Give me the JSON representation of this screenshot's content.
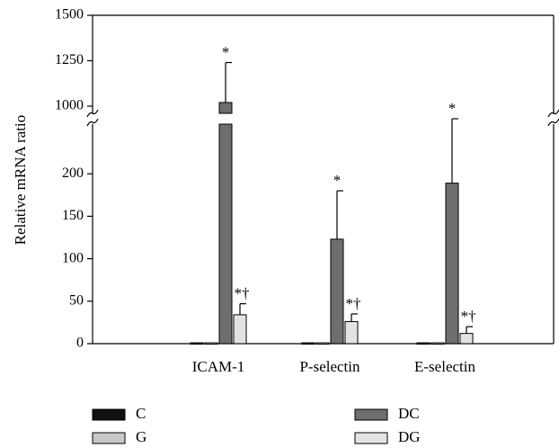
{
  "chart_data": {
    "type": "bar",
    "ylabel": "Relative mRNA ratio",
    "y_axis_break": {
      "lower_range": [
        0,
        250
      ],
      "upper_range": [
        1000,
        1500
      ]
    },
    "yticks_lower": [
      "0",
      "50",
      "100",
      "150",
      "200"
    ],
    "yticks_upper": [
      "1000",
      "1250",
      "1500"
    ],
    "categories": [
      "ICAM-1",
      "P-selectin",
      "E-selectin"
    ],
    "series": [
      {
        "name": "C",
        "color": "#111111",
        "values": [
          1,
          1,
          1
        ],
        "errors": [
          0,
          0,
          0
        ],
        "annotations": [
          "",
          "",
          ""
        ]
      },
      {
        "name": "G",
        "color": "#c8c8c8",
        "values": [
          1,
          1,
          1
        ],
        "errors": [
          0,
          0,
          0
        ],
        "annotations": [
          "",
          "",
          ""
        ]
      },
      {
        "name": "DC",
        "color": "#6e6e6e",
        "values": [
          1020,
          123,
          189
        ],
        "errors": [
          220,
          57,
          71
        ],
        "annotations": [
          "*",
          "*",
          "*"
        ]
      },
      {
        "name": "DG",
        "color": "#e3e3e3",
        "values": [
          34,
          26,
          12
        ],
        "errors": [
          13,
          9,
          8
        ],
        "annotations": [
          "*†",
          "*†",
          "*†"
        ]
      }
    ],
    "legend_position": "bottom"
  }
}
